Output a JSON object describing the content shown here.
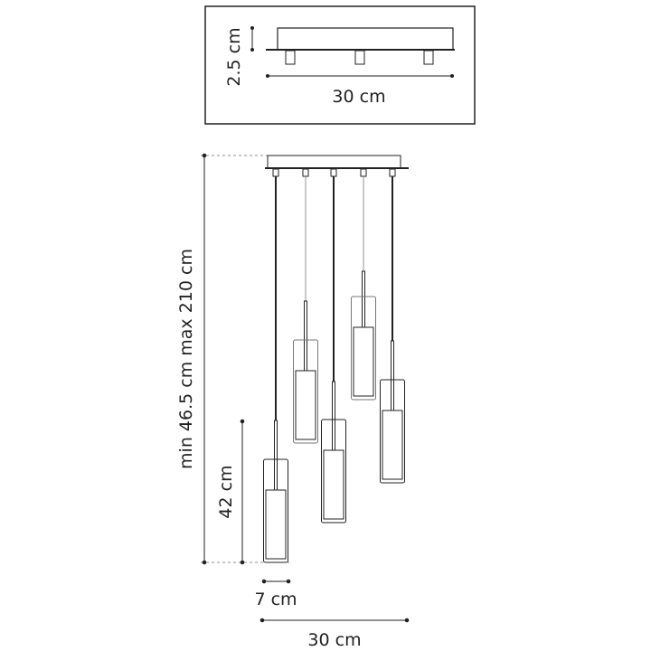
{
  "top_view": {
    "height_label": "2.5 cm",
    "width_label": "30 cm"
  },
  "main_view": {
    "length_label": "min 46.5 cm max 210 cm",
    "pendant_height_label": "42 cm",
    "pendant_width_label": "7 cm",
    "width_label": "30 cm"
  }
}
